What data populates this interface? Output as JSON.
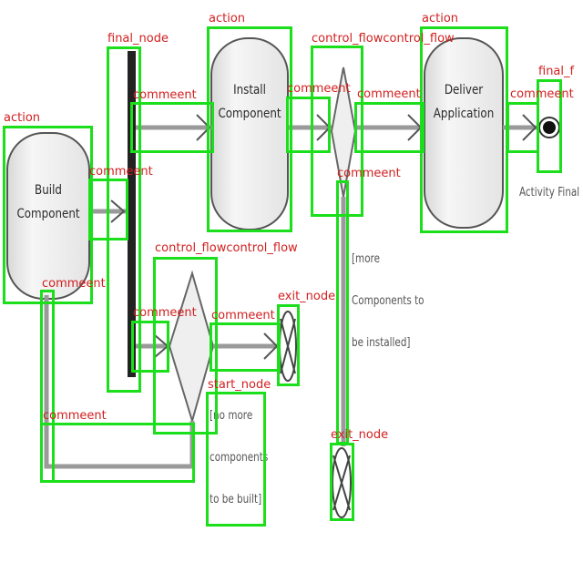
{
  "nodes": {
    "build_component": "Build\nComponent",
    "install_component": "Install\nComponent",
    "deliver_application": "Deliver\nApplication"
  },
  "final_caption": "Activity Final",
  "guards": {
    "more_components": "[more\nComponents to\nbe installed]",
    "no_more_components": "[no more\ncomponents\nto be built]"
  },
  "annotations": [
    {
      "id": "a1",
      "label": "action"
    },
    {
      "id": "a2",
      "label": "final_node"
    },
    {
      "id": "a3",
      "label": "action"
    },
    {
      "id": "a4",
      "label": "control_flowcontrol_flow"
    },
    {
      "id": "a5",
      "label": "action"
    },
    {
      "id": "a6",
      "label": "final_f"
    },
    {
      "id": "a7",
      "label": "commeent"
    },
    {
      "id": "a8",
      "label": "commeent"
    },
    {
      "id": "a9",
      "label": "commeent"
    },
    {
      "id": "a10",
      "label": "commeent"
    },
    {
      "id": "a11",
      "label": "commeent"
    },
    {
      "id": "a12",
      "label": "commeent"
    },
    {
      "id": "a13",
      "label": "control_flowcontrol_flow"
    },
    {
      "id": "a14",
      "label": "exit_node"
    },
    {
      "id": "a15",
      "label": "commeent"
    },
    {
      "id": "a16",
      "label": "commeent"
    },
    {
      "id": "a17",
      "label": "commeent"
    },
    {
      "id": "a18",
      "label": "start_node"
    },
    {
      "id": "a19",
      "label": "commeent"
    },
    {
      "id": "a20",
      "label": "exit_node"
    }
  ]
}
